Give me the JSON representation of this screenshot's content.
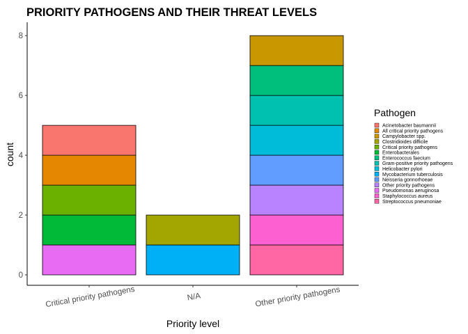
{
  "chart_data": {
    "type": "bar",
    "stacked": true,
    "title": "PRIORITY PATHOGENS AND THEIR THREAT LEVELS",
    "xlabel": "Priority level",
    "ylabel": "count",
    "ylim": [
      0,
      8.4
    ],
    "yticks": [
      0,
      2,
      4,
      6,
      8
    ],
    "grid": false,
    "legend_position": "right",
    "categories": [
      "Critical priority pathogens",
      "N/A",
      "Other priority pathogens"
    ],
    "legend_title": "Pathogen",
    "legend": [
      {
        "name": "Acinetobacter baumannii",
        "color": "#F8766D"
      },
      {
        "name": "All critical priority pathogens",
        "color": "#E58700"
      },
      {
        "name": "Campylobacter spp.",
        "color": "#C99800"
      },
      {
        "name": "Clostridioides difficile",
        "color": "#A3A500"
      },
      {
        "name": "Critical priority pathogens",
        "color": "#6BB100"
      },
      {
        "name": "Enterobacterales",
        "color": "#00BA38"
      },
      {
        "name": "Enterococcus faecium",
        "color": "#00BF7D"
      },
      {
        "name": "Gram-positive priority pathogens",
        "color": "#00C0AF"
      },
      {
        "name": "Helicobacter pylori",
        "color": "#00BCD8"
      },
      {
        "name": "Mycobacterium tuberculosis",
        "color": "#00B0F6"
      },
      {
        "name": "Neisseria gonnorhoeae",
        "color": "#619CFF"
      },
      {
        "name": "Other priority pathogens",
        "color": "#B983FF"
      },
      {
        "name": "Pseudomonas aeruginosa",
        "color": "#E76BF3"
      },
      {
        "name": "Staphylococcus aureus",
        "color": "#FD61D1"
      },
      {
        "name": "Streptococcus pneumoniae",
        "color": "#FF67A4"
      }
    ],
    "stacks": [
      {
        "category": "Critical priority pathogens",
        "segments_bottom_to_top": [
          {
            "series": "Pseudomonas aeruginosa",
            "value": 1
          },
          {
            "series": "Enterobacterales",
            "value": 1
          },
          {
            "series": "Critical priority pathogens",
            "value": 1
          },
          {
            "series": "All critical priority pathogens",
            "value": 1
          },
          {
            "series": "Acinetobacter baumannii",
            "value": 1
          }
        ]
      },
      {
        "category": "N/A",
        "segments_bottom_to_top": [
          {
            "series": "Mycobacterium tuberculosis",
            "value": 1
          },
          {
            "series": "Clostridioides difficile",
            "value": 1
          }
        ]
      },
      {
        "category": "Other priority pathogens",
        "segments_bottom_to_top": [
          {
            "series": "Streptococcus pneumoniae",
            "value": 1
          },
          {
            "series": "Staphylococcus aureus",
            "value": 1
          },
          {
            "series": "Other priority pathogens",
            "value": 1
          },
          {
            "series": "Neisseria gonnorhoeae",
            "value": 1
          },
          {
            "series": "Helicobacter pylori",
            "value": 1
          },
          {
            "series": "Gram-positive priority pathogens",
            "value": 1
          },
          {
            "series": "Enterococcus faecium",
            "value": 1
          },
          {
            "series": "Campylobacter spp.",
            "value": 1
          }
        ]
      }
    ]
  }
}
